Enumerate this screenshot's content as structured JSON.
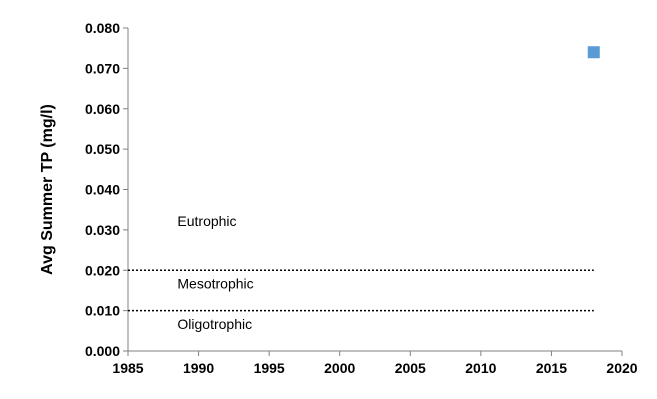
{
  "chart_data": {
    "type": "scatter",
    "title": "",
    "xlabel": "",
    "ylabel": "Avg Summer TP (mg/l)",
    "xlim": [
      1985,
      2020
    ],
    "ylim": [
      0.0,
      0.08
    ],
    "x_ticks": [
      "1985",
      "1990",
      "1995",
      "2000",
      "2005",
      "2010",
      "2015",
      "2020"
    ],
    "y_ticks": [
      "0.000",
      "0.010",
      "0.020",
      "0.030",
      "0.040",
      "0.050",
      "0.060",
      "0.070",
      "0.080"
    ],
    "grid": false,
    "legend": "none",
    "series": [
      {
        "marker": "square",
        "color": "#5b9bd5",
        "points": [
          {
            "x": 2018,
            "y": 0.074
          }
        ]
      }
    ],
    "reference_lines": [
      {
        "y": 0.02,
        "style": "dotted",
        "x_end": 2018
      },
      {
        "y": 0.01,
        "style": "dotted",
        "x_end": 2018
      }
    ],
    "zones": [
      {
        "label": "Eutrophic",
        "x": 1988.5,
        "y": 0.031
      },
      {
        "label": "Mesotrophic",
        "x": 1988.5,
        "y": 0.0155
      },
      {
        "label": "Oligotrophic",
        "x": 1988.5,
        "y": 0.0055
      }
    ]
  }
}
